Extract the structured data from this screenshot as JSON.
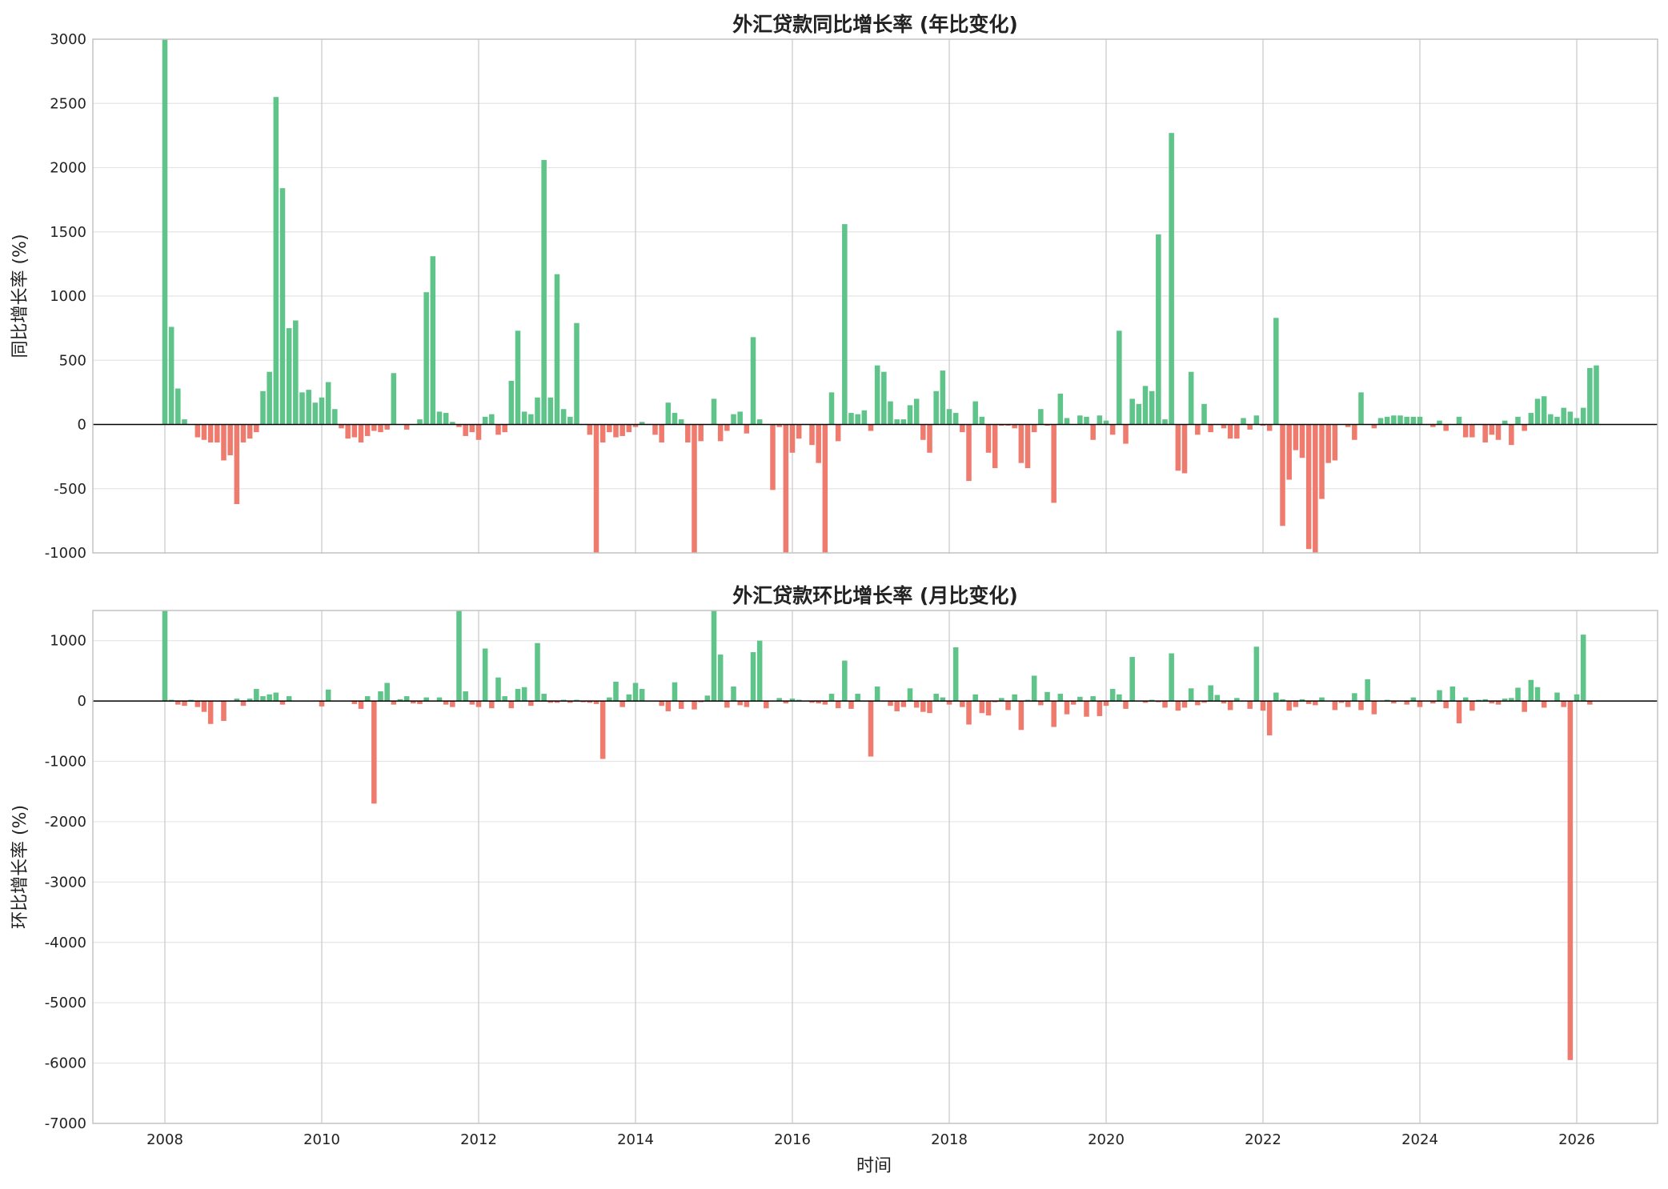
{
  "colors": {
    "positive": "#5ec48a",
    "negative": "#ef7b6e",
    "grid": "#e5e5e5",
    "vgrid": "#cccccc",
    "frame": "#c4c4c4",
    "zero": "#000000"
  },
  "x_axis": {
    "label": "时间",
    "ticks": [
      "2008",
      "2010",
      "2012",
      "2014",
      "2016",
      "2018",
      "2020",
      "2022",
      "2024",
      "2026"
    ]
  },
  "chart_data": [
    {
      "type": "bar",
      "title": "外汇贷款同比增长率 (年比变化)",
      "xlabel": "",
      "ylabel": "同比增长率 (%)",
      "ylim": [
        -1000,
        3000
      ],
      "yticks": [
        3000,
        2500,
        2000,
        1500,
        1000,
        500,
        0,
        -500,
        -1000
      ],
      "grid": true,
      "x_start": "2008-01",
      "frequency": "monthly",
      "values": [
        3000,
        760,
        280,
        40,
        0,
        -100,
        -120,
        -140,
        -140,
        -280,
        -240,
        -620,
        -140,
        -110,
        -60,
        260,
        410,
        2550,
        1840,
        750,
        810,
        250,
        270,
        170,
        210,
        330,
        120,
        -30,
        -110,
        -100,
        -140,
        -90,
        -50,
        -60,
        -40,
        400,
        0,
        -40,
        0,
        40,
        1030,
        1310,
        100,
        90,
        20,
        -20,
        -90,
        -60,
        -120,
        60,
        80,
        -80,
        -60,
        340,
        730,
        100,
        80,
        210,
        2060,
        210,
        1170,
        120,
        60,
        790,
        0,
        -80,
        -1000,
        -140,
        -60,
        -100,
        -90,
        -60,
        -20,
        20,
        0,
        -80,
        -140,
        170,
        90,
        40,
        -140,
        -1000,
        -130,
        0,
        200,
        -130,
        -50,
        80,
        100,
        -70,
        680,
        40,
        0,
        -510,
        -20,
        -1000,
        -220,
        -110,
        0,
        -160,
        -300,
        -1000,
        250,
        -130,
        1560,
        90,
        80,
        110,
        -50,
        460,
        410,
        180,
        40,
        40,
        150,
        200,
        -120,
        -220,
        260,
        420,
        120,
        90,
        -60,
        -440,
        180,
        60,
        -220,
        -340,
        -10,
        -10,
        -30,
        -300,
        -340,
        -60,
        120,
        -10,
        -610,
        240,
        50,
        0,
        70,
        60,
        -120,
        70,
        30,
        -80,
        730,
        -150,
        200,
        160,
        300,
        260,
        1480,
        40,
        2270,
        -360,
        -380,
        410,
        -80,
        160,
        -60,
        0,
        -30,
        -110,
        -110,
        50,
        -40,
        70,
        -10,
        -50,
        830,
        -790,
        -430,
        -200,
        -260,
        -970,
        -1000,
        -580,
        -300,
        -280,
        0,
        -20,
        -120,
        250,
        0,
        -30,
        50,
        60,
        70,
        70,
        60,
        60,
        60,
        0,
        -20,
        30,
        -50,
        0,
        60,
        -100,
        -100,
        0,
        -140,
        -80,
        -120,
        30,
        -160,
        60,
        -50,
        90,
        200,
        220,
        80,
        60,
        130,
        100,
        50,
        130,
        440,
        460
      ]
    },
    {
      "type": "bar",
      "title": "外汇贷款环比增长率 (月比变化)",
      "xlabel": "时间",
      "ylabel": "环比增长率 (%)",
      "ylim": [
        -7000,
        1500
      ],
      "yticks": [
        1000,
        0,
        -1000,
        -2000,
        -3000,
        -4000,
        -5000,
        -6000,
        -7000
      ],
      "grid": true,
      "x_start": "2008-01",
      "frequency": "monthly",
      "values": [
        1500,
        20,
        -60,
        -80,
        20,
        -100,
        -180,
        -380,
        0,
        -330,
        0,
        40,
        -80,
        40,
        200,
        80,
        110,
        140,
        -60,
        80,
        0,
        0,
        0,
        0,
        -90,
        190,
        0,
        0,
        0,
        -50,
        -130,
        80,
        -1700,
        160,
        300,
        -60,
        30,
        80,
        -40,
        -50,
        60,
        0,
        60,
        -60,
        -100,
        1500,
        160,
        -60,
        -100,
        870,
        -120,
        390,
        80,
        -120,
        200,
        230,
        -80,
        960,
        120,
        -30,
        -30,
        20,
        -30,
        20,
        -20,
        -30,
        -50,
        -960,
        60,
        320,
        -100,
        110,
        300,
        200,
        0,
        0,
        -80,
        -170,
        310,
        -130,
        0,
        -140,
        -20,
        90,
        1500,
        770,
        -110,
        240,
        -70,
        -100,
        810,
        1000,
        -120,
        0,
        50,
        -40,
        40,
        20,
        0,
        -30,
        -40,
        -60,
        120,
        -120,
        670,
        -130,
        120,
        0,
        -920,
        240,
        0,
        -80,
        -170,
        -100,
        210,
        -110,
        -180,
        -200,
        120,
        60,
        -60,
        890,
        -100,
        -390,
        110,
        -200,
        -240,
        -20,
        50,
        -150,
        110,
        -480,
        20,
        420,
        -70,
        150,
        -430,
        120,
        -220,
        -60,
        70,
        -260,
        80,
        -250,
        -80,
        200,
        110,
        -130,
        730,
        0,
        -30,
        20,
        -20,
        -110,
        790,
        -160,
        -110,
        210,
        -70,
        -30,
        260,
        100,
        -40,
        -150,
        50,
        0,
        -130,
        900,
        -160,
        -570,
        140,
        30,
        -160,
        -100,
        30,
        -50,
        -70,
        60,
        0,
        -150,
        -30,
        -100,
        130,
        -150,
        360,
        -220,
        0,
        20,
        -40,
        0,
        -60,
        60,
        -100,
        0,
        -40,
        180,
        -120,
        240,
        -370,
        60,
        -160,
        20,
        30,
        -40,
        -60,
        40,
        50,
        220,
        -180,
        350,
        230,
        -110,
        0,
        140,
        -100,
        -5950,
        110,
        1100,
        -60
      ]
    }
  ]
}
